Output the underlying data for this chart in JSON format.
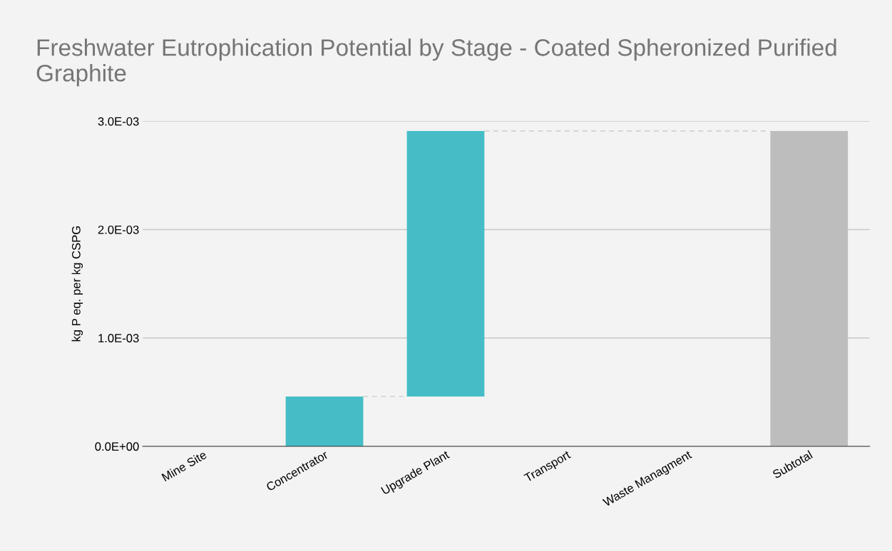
{
  "chart_data": {
    "type": "bar",
    "title": "Freshwater Eutrophication Potential by Stage - Coated Spheronized Purified Graphite",
    "ylabel": "kg P eq. per kg CSPG",
    "categories": [
      "Mine Site",
      "Concentrator",
      "Upgrade Plant",
      "Transport",
      "Waste Managment",
      "Subtotal"
    ],
    "values": [
      0,
      0.00046,
      0.00245,
      0,
      0,
      0.00291
    ],
    "base": [
      null,
      0,
      0.00046,
      null,
      null,
      0
    ],
    "colors": [
      "#46bdc6",
      "#46bdc6",
      "#46bdc6",
      "#46bdc6",
      "#46bdc6",
      "#bdbdbd"
    ],
    "ylim": [
      0,
      0.003
    ],
    "yticks": [
      {
        "value": 0,
        "label": "0.0E+00"
      },
      {
        "value": 0.001,
        "label": "1.0E-03"
      },
      {
        "value": 0.002,
        "label": "2.0E-03"
      },
      {
        "value": 0.003,
        "label": "3.0E-03"
      }
    ],
    "grid": "y"
  }
}
